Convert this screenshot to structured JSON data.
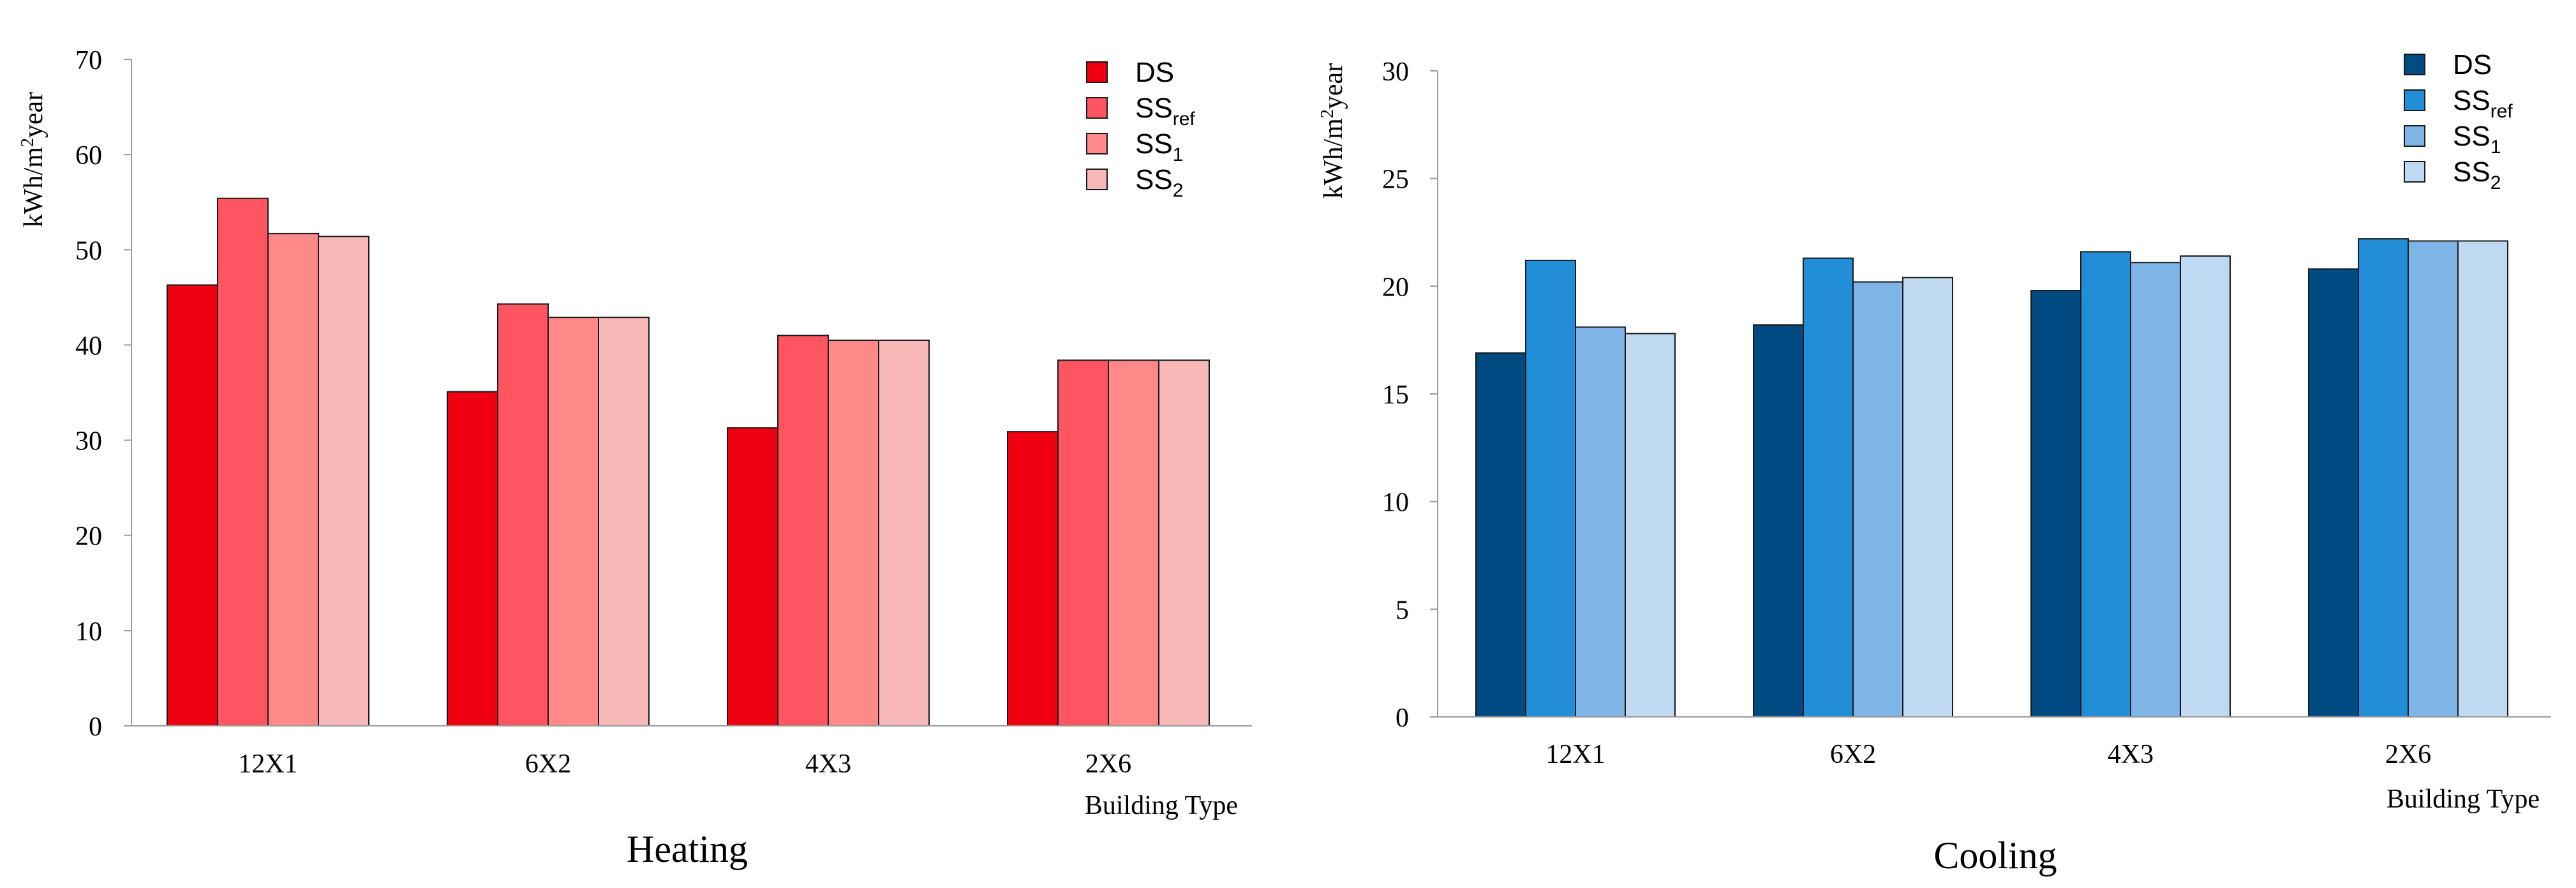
{
  "chart_data": [
    {
      "type": "bar",
      "title": "Heating",
      "xlabel": "Building Type",
      "ylabel_parts": [
        "kWh/m",
        "2",
        "year"
      ],
      "ylim": [
        0,
        70
      ],
      "yticks": [
        0,
        10,
        20,
        30,
        40,
        50,
        60,
        70
      ],
      "categories": [
        "12X1",
        "6X2",
        "4X3",
        "2X6"
      ],
      "legend_position": "top-right",
      "series": [
        {
          "name": "DS",
          "sub": "",
          "color": "#EE0010",
          "values": [
            46.3,
            35.1,
            31.3,
            30.9
          ]
        },
        {
          "name": "SS",
          "sub": "ref",
          "color": "#FF5560",
          "values": [
            55.4,
            44.3,
            41.0,
            38.4
          ]
        },
        {
          "name": "SS",
          "sub": "1",
          "color": "#FF8889",
          "values": [
            51.7,
            42.9,
            40.5,
            38.4
          ]
        },
        {
          "name": "SS",
          "sub": "2",
          "color": "#F8B8B8",
          "values": [
            51.4,
            42.9,
            40.5,
            38.4
          ]
        }
      ]
    },
    {
      "type": "bar",
      "title": "Cooling",
      "xlabel": "Building Type",
      "ylabel_parts": [
        "kWh/m",
        "2",
        "year"
      ],
      "ylim": [
        0,
        30
      ],
      "yticks": [
        0,
        5,
        10,
        15,
        20,
        25,
        30
      ],
      "categories": [
        "12X1",
        "6X2",
        "4X3",
        "2X6"
      ],
      "legend_position": "top-right",
      "series": [
        {
          "name": "DS",
          "sub": "",
          "color": "#004A82",
          "values": [
            16.9,
            18.2,
            19.8,
            20.8
          ]
        },
        {
          "name": "SS",
          "sub": "ref",
          "color": "#228ED8",
          "values": [
            21.2,
            21.3,
            21.6,
            22.2
          ]
        },
        {
          "name": "SS",
          "sub": "1",
          "color": "#7FB4E6",
          "values": [
            18.1,
            20.2,
            21.1,
            22.1
          ]
        },
        {
          "name": "SS",
          "sub": "2",
          "color": "#BFD9F2",
          "values": [
            17.8,
            20.4,
            21.4,
            22.1
          ]
        }
      ]
    }
  ]
}
